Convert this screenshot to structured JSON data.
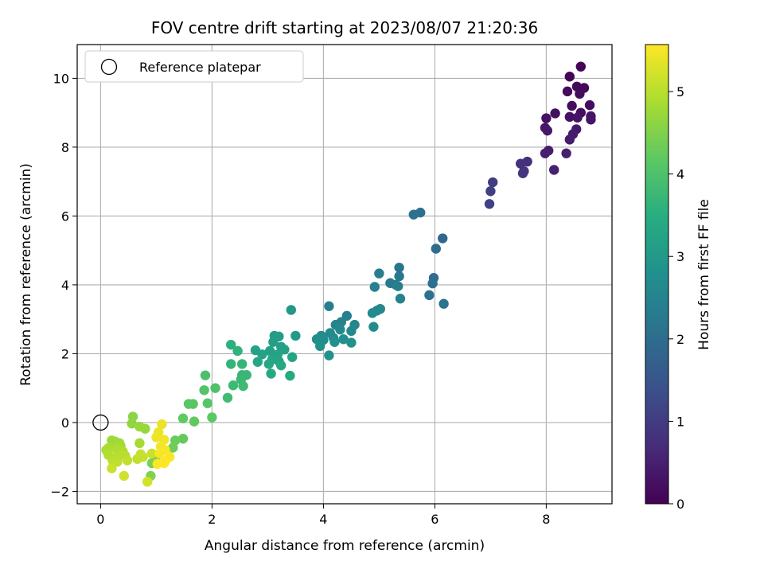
{
  "chart_data": {
    "type": "scatter",
    "title": "FOV centre drift starting at 2023/08/07 21:20:36",
    "xlabel": "Angular distance from reference (arcmin)",
    "ylabel": "Rotation from reference (arcmin)",
    "xlim": [
      -0.42,
      9.18
    ],
    "ylim": [
      -2.36,
      10.98
    ],
    "xticks": [
      0,
      2,
      4,
      6,
      8
    ],
    "yticks": [
      -2,
      0,
      2,
      4,
      6,
      8,
      10
    ],
    "grid": true,
    "colormap": "viridis",
    "colorbar": {
      "label": "Hours from first FF file",
      "range": [
        0,
        5.57
      ],
      "ticks": [
        0,
        1,
        2,
        3,
        4,
        5
      ]
    },
    "legend": {
      "placement": "upper-left",
      "entries": [
        {
          "label": "Reference platepar",
          "marker": "open-circle"
        }
      ]
    },
    "reference_point": {
      "x": 0,
      "y": 0
    },
    "series": [
      {
        "points": [
          {
            "x": 8.62,
            "y": 10.34,
            "c": 0.05
          },
          {
            "x": 8.42,
            "y": 10.05,
            "c": 0.08
          },
          {
            "x": 8.55,
            "y": 9.76,
            "c": 0.1
          },
          {
            "x": 8.68,
            "y": 9.72,
            "c": 0.12
          },
          {
            "x": 8.38,
            "y": 9.62,
            "c": 0.14
          },
          {
            "x": 8.6,
            "y": 9.55,
            "c": 0.16
          },
          {
            "x": 8.78,
            "y": 9.22,
            "c": 0.18
          },
          {
            "x": 8.46,
            "y": 9.2,
            "c": 0.2
          },
          {
            "x": 8.62,
            "y": 9.0,
            "c": 0.22
          },
          {
            "x": 8.16,
            "y": 8.98,
            "c": 0.24
          },
          {
            "x": 8.0,
            "y": 8.84,
            "c": 0.26
          },
          {
            "x": 8.42,
            "y": 8.88,
            "c": 0.28
          },
          {
            "x": 8.56,
            "y": 8.86,
            "c": 0.3
          },
          {
            "x": 8.8,
            "y": 8.9,
            "c": 0.32
          },
          {
            "x": 8.8,
            "y": 8.8,
            "c": 0.34
          },
          {
            "x": 7.98,
            "y": 8.56,
            "c": 0.36
          },
          {
            "x": 8.02,
            "y": 8.48,
            "c": 0.38
          },
          {
            "x": 8.54,
            "y": 8.52,
            "c": 0.4
          },
          {
            "x": 8.48,
            "y": 8.38,
            "c": 0.42
          },
          {
            "x": 8.42,
            "y": 8.22,
            "c": 0.44
          },
          {
            "x": 8.04,
            "y": 7.9,
            "c": 0.46
          },
          {
            "x": 7.98,
            "y": 7.82,
            "c": 0.48
          },
          {
            "x": 8.36,
            "y": 7.82,
            "c": 0.5
          },
          {
            "x": 8.14,
            "y": 7.34,
            "c": 0.52
          },
          {
            "x": 7.66,
            "y": 7.58,
            "c": 0.75
          },
          {
            "x": 7.54,
            "y": 7.52,
            "c": 0.8
          },
          {
            "x": 7.6,
            "y": 7.3,
            "c": 0.85
          },
          {
            "x": 7.58,
            "y": 7.24,
            "c": 0.88
          },
          {
            "x": 7.04,
            "y": 6.98,
            "c": 1.0
          },
          {
            "x": 7.0,
            "y": 6.72,
            "c": 1.05
          },
          {
            "x": 6.98,
            "y": 6.35,
            "c": 1.1
          },
          {
            "x": 5.74,
            "y": 6.1,
            "c": 2.05
          },
          {
            "x": 5.62,
            "y": 6.04,
            "c": 2.1
          },
          {
            "x": 6.14,
            "y": 5.35,
            "c": 1.9
          },
          {
            "x": 6.02,
            "y": 5.05,
            "c": 1.95
          },
          {
            "x": 5.36,
            "y": 4.5,
            "c": 2.15
          },
          {
            "x": 5.36,
            "y": 4.25,
            "c": 2.2
          },
          {
            "x": 5.2,
            "y": 4.05,
            "c": 2.25
          },
          {
            "x": 5.3,
            "y": 4.0,
            "c": 2.3
          },
          {
            "x": 5.0,
            "y": 4.33,
            "c": 2.35
          },
          {
            "x": 5.34,
            "y": 3.96,
            "c": 2.4
          },
          {
            "x": 4.92,
            "y": 3.94,
            "c": 2.45
          },
          {
            "x": 5.38,
            "y": 3.6,
            "c": 2.5
          },
          {
            "x": 5.98,
            "y": 4.2,
            "c": 2.0
          },
          {
            "x": 5.96,
            "y": 4.04,
            "c": 2.05
          },
          {
            "x": 5.9,
            "y": 3.7,
            "c": 2.1
          },
          {
            "x": 6.16,
            "y": 3.45,
            "c": 2.15
          },
          {
            "x": 5.02,
            "y": 3.3,
            "c": 2.55
          },
          {
            "x": 4.96,
            "y": 3.25,
            "c": 2.6
          },
          {
            "x": 4.88,
            "y": 3.18,
            "c": 2.65
          },
          {
            "x": 4.9,
            "y": 2.78,
            "c": 2.7
          },
          {
            "x": 4.1,
            "y": 3.38,
            "c": 2.35
          },
          {
            "x": 4.42,
            "y": 3.1,
            "c": 2.4
          },
          {
            "x": 4.32,
            "y": 2.92,
            "c": 2.45
          },
          {
            "x": 4.22,
            "y": 2.84,
            "c": 2.5
          },
          {
            "x": 4.56,
            "y": 2.84,
            "c": 2.55
          },
          {
            "x": 4.5,
            "y": 2.66,
            "c": 2.6
          },
          {
            "x": 4.3,
            "y": 2.7,
            "c": 2.62
          },
          {
            "x": 4.12,
            "y": 2.6,
            "c": 2.65
          },
          {
            "x": 3.96,
            "y": 2.52,
            "c": 2.68
          },
          {
            "x": 4.18,
            "y": 2.46,
            "c": 2.7
          },
          {
            "x": 4.0,
            "y": 2.4,
            "c": 2.72
          },
          {
            "x": 3.88,
            "y": 2.42,
            "c": 2.74
          },
          {
            "x": 4.36,
            "y": 2.42,
            "c": 2.76
          },
          {
            "x": 4.2,
            "y": 2.34,
            "c": 2.78
          },
          {
            "x": 4.5,
            "y": 2.32,
            "c": 2.8
          },
          {
            "x": 3.94,
            "y": 2.22,
            "c": 2.82
          },
          {
            "x": 4.1,
            "y": 1.95,
            "c": 2.84
          },
          {
            "x": 3.42,
            "y": 3.27,
            "c": 2.95
          },
          {
            "x": 3.5,
            "y": 2.52,
            "c": 3.0
          },
          {
            "x": 3.12,
            "y": 2.52,
            "c": 3.05
          },
          {
            "x": 3.2,
            "y": 2.5,
            "c": 3.1
          },
          {
            "x": 3.1,
            "y": 2.34,
            "c": 3.12
          },
          {
            "x": 3.24,
            "y": 2.2,
            "c": 3.14
          },
          {
            "x": 3.3,
            "y": 2.12,
            "c": 3.16
          },
          {
            "x": 3.04,
            "y": 2.08,
            "c": 3.18
          },
          {
            "x": 2.78,
            "y": 2.1,
            "c": 3.2
          },
          {
            "x": 2.9,
            "y": 1.98,
            "c": 3.22
          },
          {
            "x": 3.18,
            "y": 1.98,
            "c": 3.24
          },
          {
            "x": 3.44,
            "y": 1.9,
            "c": 3.26
          },
          {
            "x": 3.08,
            "y": 1.84,
            "c": 3.28
          },
          {
            "x": 3.2,
            "y": 1.78,
            "c": 3.3
          },
          {
            "x": 2.82,
            "y": 1.76,
            "c": 3.32
          },
          {
            "x": 3.02,
            "y": 1.7,
            "c": 3.34
          },
          {
            "x": 3.24,
            "y": 1.66,
            "c": 3.36
          },
          {
            "x": 3.06,
            "y": 1.42,
            "c": 3.38
          },
          {
            "x": 3.4,
            "y": 1.36,
            "c": 3.4
          },
          {
            "x": 2.34,
            "y": 2.26,
            "c": 3.55
          },
          {
            "x": 2.46,
            "y": 2.08,
            "c": 3.6
          },
          {
            "x": 2.34,
            "y": 1.7,
            "c": 3.65
          },
          {
            "x": 2.54,
            "y": 1.7,
            "c": 3.68
          },
          {
            "x": 2.54,
            "y": 1.38,
            "c": 3.7
          },
          {
            "x": 2.62,
            "y": 1.38,
            "c": 3.72
          },
          {
            "x": 2.52,
            "y": 1.25,
            "c": 3.75
          },
          {
            "x": 2.38,
            "y": 1.08,
            "c": 3.78
          },
          {
            "x": 2.56,
            "y": 1.06,
            "c": 3.8
          },
          {
            "x": 2.28,
            "y": 0.72,
            "c": 3.82
          },
          {
            "x": 1.88,
            "y": 1.37,
            "c": 3.95
          },
          {
            "x": 2.06,
            "y": 1.0,
            "c": 4.0
          },
          {
            "x": 1.86,
            "y": 0.94,
            "c": 4.05
          },
          {
            "x": 1.92,
            "y": 0.56,
            "c": 4.1
          },
          {
            "x": 1.66,
            "y": 0.54,
            "c": 4.12
          },
          {
            "x": 1.58,
            "y": 0.54,
            "c": 4.15
          },
          {
            "x": 2.0,
            "y": 0.15,
            "c": 4.18
          },
          {
            "x": 1.48,
            "y": 0.12,
            "c": 4.2
          },
          {
            "x": 1.68,
            "y": 0.03,
            "c": 4.22
          },
          {
            "x": 1.48,
            "y": -0.47,
            "c": 4.25
          },
          {
            "x": 1.34,
            "y": -0.52,
            "c": 4.3
          },
          {
            "x": 1.3,
            "y": -0.73,
            "c": 4.35
          },
          {
            "x": 1.0,
            "y": -0.98,
            "c": 4.4
          },
          {
            "x": 0.92,
            "y": -1.18,
            "c": 4.45
          },
          {
            "x": 0.9,
            "y": -1.55,
            "c": 4.5
          },
          {
            "x": 0.58,
            "y": 0.17,
            "c": 4.6
          },
          {
            "x": 0.56,
            "y": -0.03,
            "c": 4.65
          },
          {
            "x": 0.8,
            "y": -0.18,
            "c": 4.7
          },
          {
            "x": 0.7,
            "y": -0.12,
            "c": 4.72
          },
          {
            "x": 0.2,
            "y": -0.52,
            "c": 4.75
          },
          {
            "x": 0.26,
            "y": -0.55,
            "c": 4.78
          },
          {
            "x": 0.34,
            "y": -0.6,
            "c": 4.8
          },
          {
            "x": 0.36,
            "y": -0.68,
            "c": 4.82
          },
          {
            "x": 0.7,
            "y": -0.6,
            "c": 4.84
          },
          {
            "x": 0.1,
            "y": -0.8,
            "c": 4.86
          },
          {
            "x": 0.14,
            "y": -0.74,
            "c": 4.88
          },
          {
            "x": 0.28,
            "y": -0.76,
            "c": 4.9
          },
          {
            "x": 0.4,
            "y": -0.84,
            "c": 4.92
          },
          {
            "x": 0.14,
            "y": -0.94,
            "c": 4.94
          },
          {
            "x": 0.2,
            "y": -1.02,
            "c": 4.96
          },
          {
            "x": 0.34,
            "y": -0.96,
            "c": 4.98
          },
          {
            "x": 0.44,
            "y": -0.96,
            "c": 5.0
          },
          {
            "x": 0.22,
            "y": -1.12,
            "c": 5.02
          },
          {
            "x": 0.3,
            "y": -1.14,
            "c": 5.04
          },
          {
            "x": 0.48,
            "y": -1.1,
            "c": 5.06
          },
          {
            "x": 0.66,
            "y": -1.06,
            "c": 5.08
          },
          {
            "x": 0.76,
            "y": -1.0,
            "c": 5.1
          },
          {
            "x": 0.72,
            "y": -0.92,
            "c": 5.12
          },
          {
            "x": 0.92,
            "y": -0.9,
            "c": 5.14
          },
          {
            "x": 0.2,
            "y": -1.33,
            "c": 5.16
          },
          {
            "x": 0.42,
            "y": -1.55,
            "c": 5.18
          },
          {
            "x": 0.84,
            "y": -1.72,
            "c": 5.2
          },
          {
            "x": 1.1,
            "y": -0.05,
            "c": 5.4
          },
          {
            "x": 1.04,
            "y": -0.28,
            "c": 5.42
          },
          {
            "x": 1.0,
            "y": -0.43,
            "c": 5.44
          },
          {
            "x": 1.14,
            "y": -0.5,
            "c": 5.46
          },
          {
            "x": 1.08,
            "y": -0.7,
            "c": 5.48
          },
          {
            "x": 1.16,
            "y": -0.8,
            "c": 5.5
          },
          {
            "x": 1.06,
            "y": -0.9,
            "c": 5.52
          },
          {
            "x": 1.24,
            "y": -1.0,
            "c": 5.54
          },
          {
            "x": 1.16,
            "y": -1.12,
            "c": 5.55
          },
          {
            "x": 1.02,
            "y": -1.2,
            "c": 5.56
          },
          {
            "x": 1.14,
            "y": -1.18,
            "c": 5.57
          }
        ]
      }
    ]
  }
}
